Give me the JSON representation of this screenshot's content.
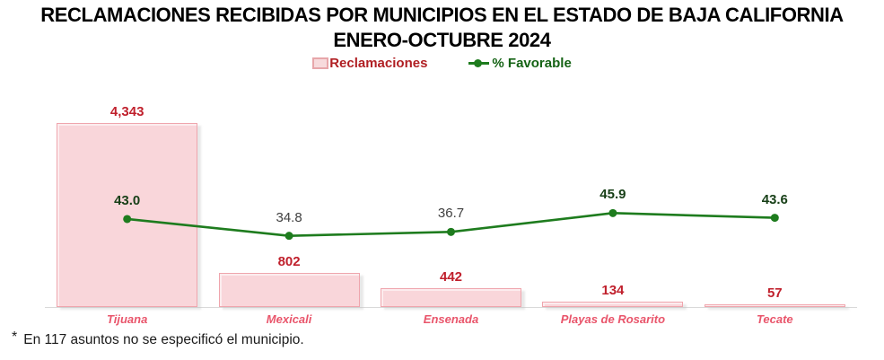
{
  "title": {
    "line1": "RECLAMACIONES RECIBIDAS POR MUNICIPIOS EN EL ESTADO DE BAJA CALIFORNIA",
    "line2": "ENERO-OCTUBRE 2024"
  },
  "footnote": {
    "marker": "*",
    "text": "En 117 asuntos no se especificó el municipio."
  },
  "colors": {
    "title": "#000000",
    "bar_fill": "#f9d6da",
    "bar_border": "#efa5ad",
    "bar_value_label": "#c0202c",
    "category_label": "#e9556b",
    "line": "#1e7c1e",
    "point_label_bold": "#173f17",
    "point_label_regular": "#3f3f3f",
    "legend_reclamaciones": "#b01f23",
    "legend_favorable": "#156315",
    "axis_line": "#d9d9d9"
  },
  "chart_data": {
    "type": "bar+line combo",
    "title": "RECLAMACIONES RECIBIDAS POR MUNICIPIOS EN EL ESTADO DE BAJA CALIFORNIA ENERO-OCTUBRE 2024",
    "categories": [
      "Tijuana",
      "Mexicali",
      "Ensenada",
      "Playas de Rosarito",
      "Tecate"
    ],
    "series": [
      {
        "name": "Reclamaciones",
        "type": "bar",
        "values": [
          4343,
          802,
          442,
          134,
          57
        ],
        "labels": [
          "4,343",
          "802",
          "442",
          "134",
          "57"
        ]
      },
      {
        "name": "% Favorable",
        "type": "line",
        "values": [
          43.0,
          34.8,
          36.7,
          45.9,
          43.6
        ],
        "labels": [
          "43.0",
          "34.8",
          "36.7",
          "45.9",
          "43.6"
        ],
        "label_bold": [
          true,
          false,
          false,
          true,
          true
        ]
      }
    ],
    "xlabel": "",
    "ylabel": "",
    "legend_position": "top",
    "grid": false,
    "footnote": "* En 117 asuntos no se especificó el municipio."
  }
}
